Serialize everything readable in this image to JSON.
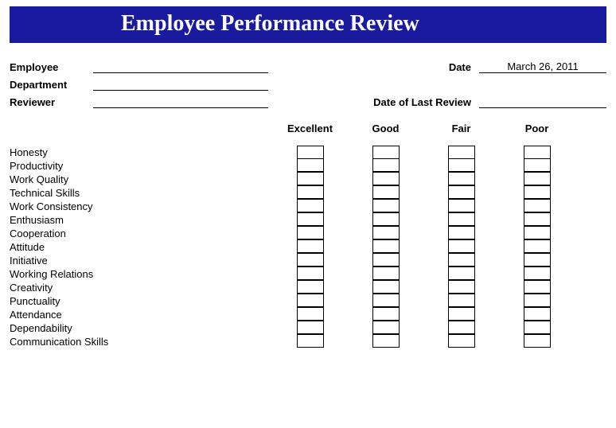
{
  "title": "Employee Performance Review",
  "labels": {
    "employee": "Employee",
    "department": "Department",
    "reviewer": "Reviewer",
    "date": "Date",
    "last_review": "Date of Last Review"
  },
  "values": {
    "employee": "",
    "department": "",
    "reviewer": "",
    "date": "March 26, 2011",
    "last_review": ""
  },
  "ratings": [
    "Excellent",
    "Good",
    "Fair",
    "Poor"
  ],
  "criteria": [
    "Honesty",
    "Productivity",
    "Work Quality",
    "Technical Skills",
    "Work Consistency",
    "Enthusiasm",
    "Cooperation",
    "Attitude",
    "Initiative",
    "Working Relations",
    "Creativity",
    "Punctuality",
    "Attendance",
    "Dependability",
    "Communication Skills"
  ],
  "colors": {
    "title_bg": "#1a1a9e",
    "title_text": "#ffffff",
    "text": "#000000",
    "line": "#000000",
    "box_border": "#000000",
    "background": "#ffffff"
  }
}
